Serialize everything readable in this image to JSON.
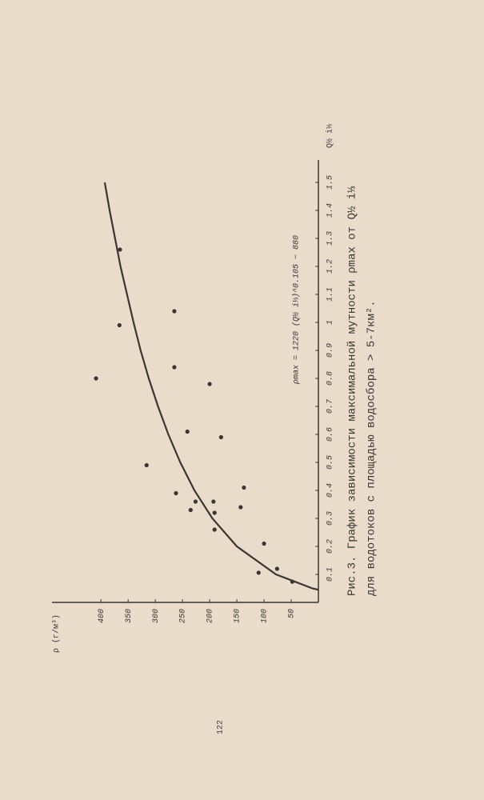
{
  "page_number": "122",
  "chart_data": {
    "type": "scatter",
    "annotation": "ρmax = 1220 (Q½ i⅓)^0.105 − 880",
    "caption": [
      "Рис.3. График зависимости максимальной мутности ρmax от Q½ i⅓",
      "для водотоков с площадью водосбора > 5-7км²."
    ],
    "x_label": "Q½ i⅓",
    "y_label": "ρ (г/м³)",
    "x": [
      0.074,
      0.12,
      0.106,
      0.21,
      0.26,
      0.33,
      0.36,
      0.36,
      0.41,
      0.34,
      0.32,
      0.39,
      0.49,
      0.61,
      0.59,
      0.78,
      0.84,
      0.8,
      0.99,
      1.04,
      1.26
    ],
    "values": [
      48,
      76,
      110,
      100,
      191,
      235,
      193,
      226,
      137,
      143,
      191,
      262,
      316,
      241,
      179,
      200,
      265,
      409,
      366,
      265,
      365
    ],
    "fit": {
      "x": [
        0.045,
        0.05,
        0.1,
        0.2,
        0.3,
        0.4,
        0.5,
        0.6,
        0.7,
        0.8,
        0.9,
        1.0,
        1.1,
        1.2,
        1.3,
        1.4,
        1.5
      ],
      "values": [
        0,
        11,
        78,
        150,
        195,
        228,
        254,
        276,
        295,
        312,
        327,
        340,
        352,
        364,
        374,
        384,
        393
      ]
    },
    "xlim": [
      0,
      1.58
    ],
    "ylim": [
      0,
      490
    ],
    "xticks": [
      0.1,
      0.2,
      0.3,
      0.4,
      0.5,
      0.6,
      0.7,
      0.8,
      0.9,
      1.0,
      1.1,
      1.2,
      1.3,
      1.4,
      1.5
    ],
    "yticks": [
      50,
      100,
      150,
      200,
      250,
      300,
      350,
      400
    ],
    "color": "#3a3633"
  }
}
